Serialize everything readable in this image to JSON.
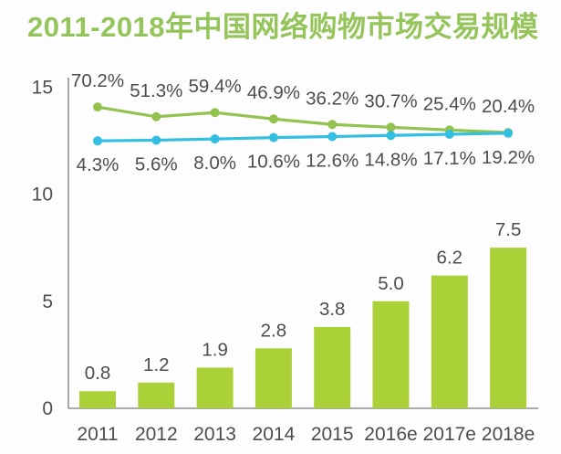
{
  "title": {
    "text": "2011-2018年中国网络购物市场交易规模"
  },
  "colors": {
    "title": "#94c45a",
    "bar": "#abd138",
    "line_green": "#94c24f",
    "line_blue": "#33bfe2",
    "label_text": "#4d4d4d",
    "axis": "#8f8f8f",
    "background": "#fdfdfd"
  },
  "chart_data": {
    "type": "bar",
    "title": "2011-2018年中国网络购物市场交易规模",
    "categories": [
      "2011",
      "2012",
      "2013",
      "2014",
      "2015",
      "2016e",
      "2017e",
      "2018e"
    ],
    "series": [
      {
        "name": "bar-series",
        "type": "bar",
        "values": [
          0.8,
          1.2,
          1.9,
          2.8,
          3.8,
          5.0,
          6.2,
          7.5
        ],
        "labels": [
          "0.8",
          "1.2",
          "1.9",
          "2.8",
          "3.8",
          "5.0",
          "6.2",
          "7.5"
        ],
        "color": "#abd138",
        "axis": "primary"
      },
      {
        "name": "green-line-series",
        "type": "line",
        "values": [
          70.2,
          51.3,
          59.4,
          46.9,
          36.2,
          30.7,
          25.4,
          20.4
        ],
        "labels": [
          "70.2%",
          "51.3%",
          "59.4%",
          "46.9%",
          "36.2%",
          "30.7%",
          "25.4%",
          "20.4%"
        ],
        "color": "#94c24f",
        "axis": "secondary",
        "label_position": "above"
      },
      {
        "name": "blue-line-series",
        "type": "line",
        "values": [
          4.3,
          5.6,
          8.0,
          10.6,
          12.6,
          14.8,
          17.1,
          19.2
        ],
        "labels": [
          "4.3%",
          "5.6%",
          "8.0%",
          "10.6%",
          "12.6%",
          "14.8%",
          "17.1%",
          "19.2%"
        ],
        "color": "#33bfe2",
        "axis": "secondary",
        "label_position": "below"
      }
    ],
    "y_axis": {
      "ticks": [
        "0",
        "5",
        "10",
        "15"
      ],
      "tick_values": [
        0,
        5,
        10,
        15
      ],
      "range": [
        0,
        15.4
      ]
    },
    "secondary_y_axis_visible": false,
    "grid": false,
    "legend": "none"
  }
}
